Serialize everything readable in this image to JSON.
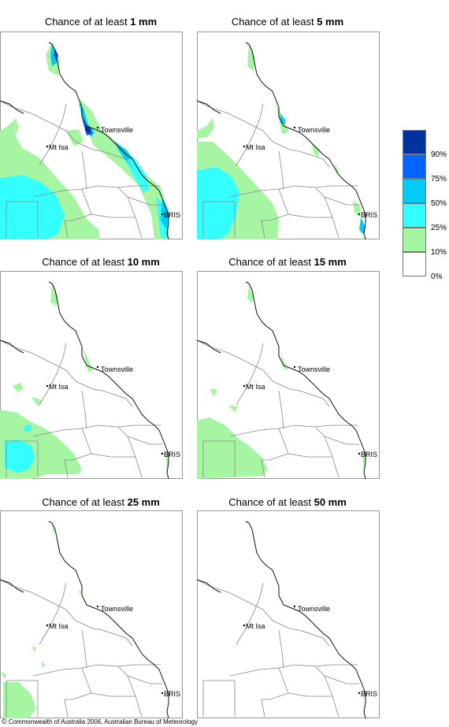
{
  "colors": {
    "band_0": "#ffffff",
    "band_10": "#a6f5a2",
    "band_25": "#33ffff",
    "band_50": "#00ccf5",
    "band_75": "#0066ff",
    "band_90": "#0033a0",
    "border": "#888888",
    "coast": "#111111"
  },
  "legend": {
    "labels": [
      "90%",
      "75%",
      "50%",
      "25%",
      "10%",
      "0%"
    ]
  },
  "places": {
    "townsville": "Townsville",
    "mt_isa": "Mt Isa",
    "brisbane": "BRIS"
  },
  "panels": [
    {
      "title_prefix": "Chance of at least ",
      "amount": "1 mm"
    },
    {
      "title_prefix": "Chance of at least ",
      "amount": "5 mm"
    },
    {
      "title_prefix": "Chance of at least ",
      "amount": "10 mm"
    },
    {
      "title_prefix": "Chance of at least ",
      "amount": "15 mm"
    },
    {
      "title_prefix": "Chance of at least ",
      "amount": "25 mm"
    },
    {
      "title_prefix": "Chance of at least ",
      "amount": "50 mm"
    }
  ],
  "footer": {
    "symbol": "©",
    "text": " Commonwealth of Australia 2006, Australian Bureau of Meteorology"
  }
}
